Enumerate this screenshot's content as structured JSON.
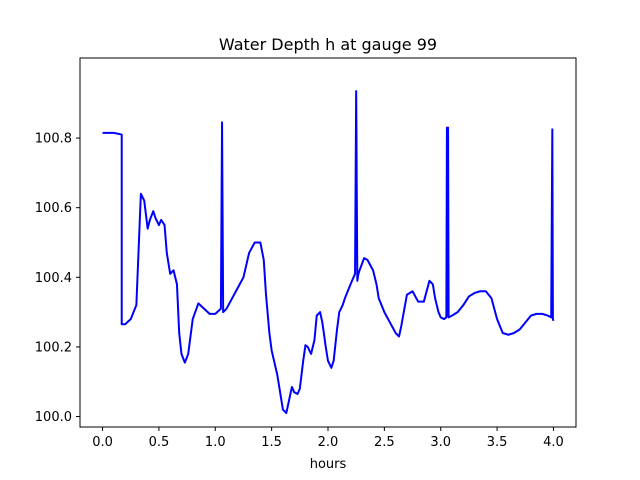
{
  "chart_data": {
    "type": "line",
    "title": "Water Depth h at gauge 99",
    "xlabel": "hours",
    "ylabel": "",
    "xlim": [
      -0.2,
      4.2
    ],
    "ylim": [
      99.97,
      101.03
    ],
    "xticks": [
      0.0,
      0.5,
      1.0,
      1.5,
      2.0,
      2.5,
      3.0,
      3.5,
      4.0
    ],
    "xtick_labels": [
      "0.0",
      "0.5",
      "1.0",
      "1.5",
      "2.0",
      "2.5",
      "3.0",
      "3.5",
      "4.0"
    ],
    "yticks": [
      100.0,
      100.2,
      100.4,
      100.6,
      100.8
    ],
    "ytick_labels": [
      "100.0",
      "100.2",
      "100.4",
      "100.6",
      "100.8"
    ],
    "grid": false,
    "legend": "none",
    "series": [
      {
        "color": "#0000ff",
        "x": [
          0.0,
          0.1,
          0.17,
          0.17,
          0.2,
          0.25,
          0.3,
          0.34,
          0.37,
          0.4,
          0.42,
          0.45,
          0.47,
          0.5,
          0.52,
          0.55,
          0.57,
          0.6,
          0.63,
          0.66,
          0.68,
          0.7,
          0.73,
          0.76,
          0.8,
          0.85,
          0.9,
          0.95,
          1.0,
          1.05,
          1.06,
          1.07,
          1.07,
          1.1,
          1.15,
          1.2,
          1.25,
          1.3,
          1.35,
          1.4,
          1.43,
          1.45,
          1.48,
          1.5,
          1.55,
          1.6,
          1.63,
          1.65,
          1.68,
          1.7,
          1.73,
          1.75,
          1.78,
          1.8,
          1.82,
          1.85,
          1.88,
          1.9,
          1.93,
          1.95,
          1.98,
          2.0,
          2.03,
          2.05,
          2.08,
          2.1,
          2.13,
          2.15,
          2.2,
          2.24,
          2.25,
          2.26,
          2.27,
          2.28,
          2.32,
          2.35,
          2.4,
          2.43,
          2.45,
          2.5,
          2.55,
          2.6,
          2.63,
          2.65,
          2.7,
          2.75,
          2.8,
          2.85,
          2.9,
          2.93,
          2.95,
          2.98,
          3.0,
          3.03,
          3.05,
          3.055,
          3.06,
          3.065,
          3.07,
          3.1,
          3.15,
          3.2,
          3.25,
          3.3,
          3.35,
          3.4,
          3.45,
          3.5,
          3.55,
          3.6,
          3.65,
          3.7,
          3.75,
          3.8,
          3.85,
          3.9,
          3.95,
          3.98,
          3.99,
          3.995,
          4.0
        ],
        "y": [
          100.815,
          100.815,
          100.81,
          100.265,
          100.265,
          100.28,
          100.32,
          100.64,
          100.62,
          100.54,
          100.565,
          100.59,
          100.57,
          100.55,
          100.565,
          100.55,
          100.47,
          100.41,
          100.42,
          100.38,
          100.24,
          100.18,
          100.155,
          100.18,
          100.28,
          100.325,
          100.31,
          100.295,
          100.295,
          100.31,
          100.845,
          100.3,
          100.3,
          100.31,
          100.34,
          100.37,
          100.4,
          100.47,
          100.5,
          100.5,
          100.45,
          100.35,
          100.24,
          100.19,
          100.12,
          100.02,
          100.01,
          100.04,
          100.085,
          100.07,
          100.065,
          100.08,
          100.16,
          100.205,
          100.2,
          100.18,
          100.22,
          100.29,
          100.3,
          100.27,
          100.2,
          100.16,
          100.14,
          100.16,
          100.25,
          100.3,
          100.32,
          100.34,
          100.38,
          100.41,
          100.935,
          100.39,
          100.41,
          100.42,
          100.455,
          100.45,
          100.42,
          100.38,
          100.34,
          100.3,
          100.27,
          100.24,
          100.23,
          100.26,
          100.35,
          100.36,
          100.33,
          100.33,
          100.39,
          100.38,
          100.34,
          100.3,
          100.285,
          100.28,
          100.285,
          100.83,
          100.29,
          100.83,
          100.285,
          100.29,
          100.3,
          100.32,
          100.345,
          100.355,
          100.36,
          100.36,
          100.34,
          100.28,
          100.24,
          100.235,
          100.24,
          100.25,
          100.27,
          100.29,
          100.295,
          100.295,
          100.29,
          100.285,
          100.825,
          100.28,
          100.275
        ]
      }
    ]
  }
}
